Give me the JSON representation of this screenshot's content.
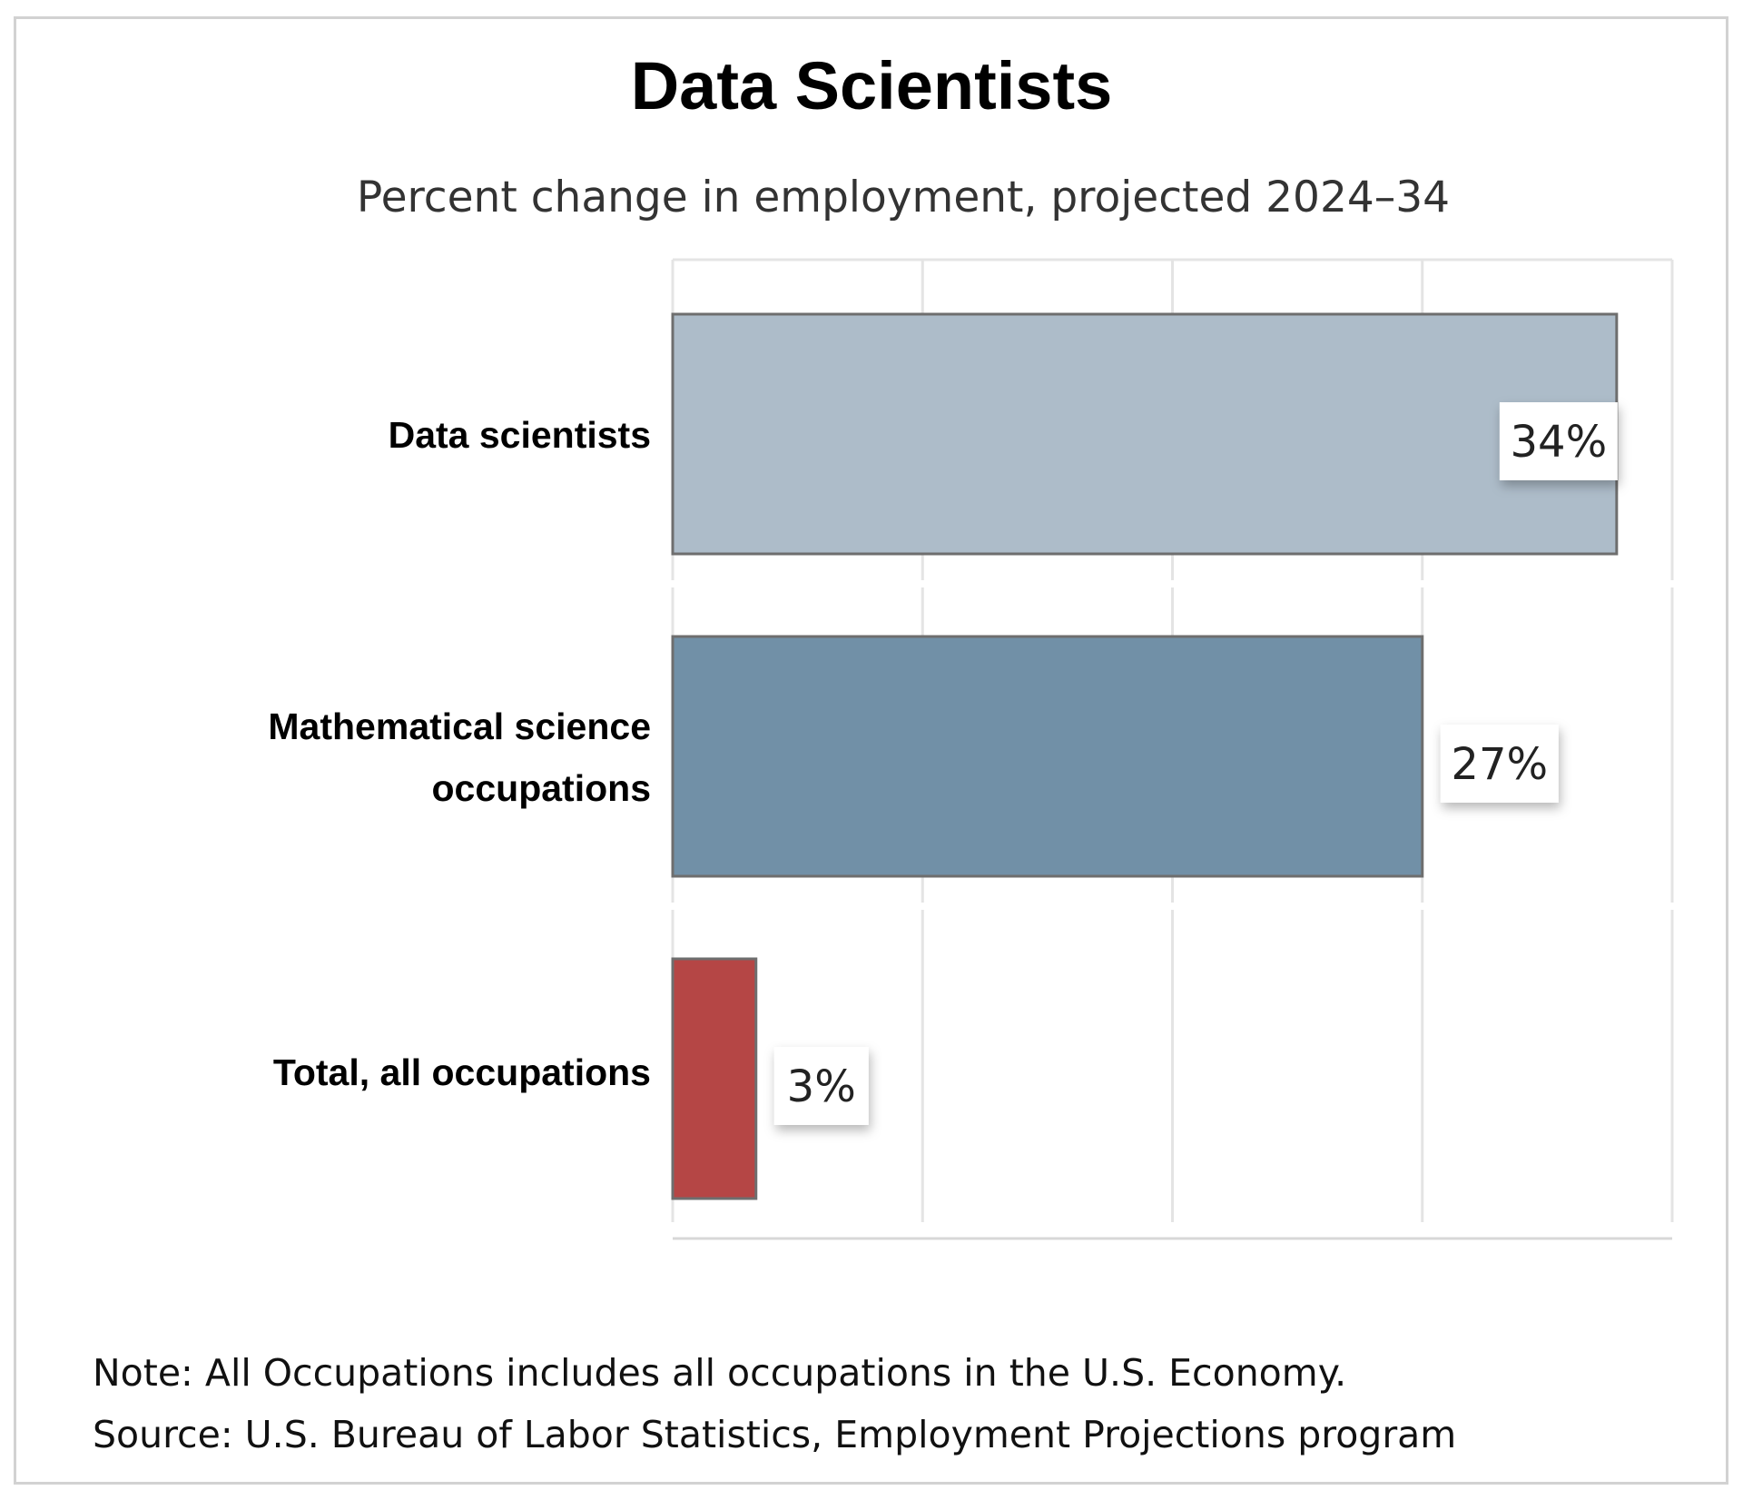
{
  "chart_data": {
    "type": "bar",
    "orientation": "horizontal",
    "title": "Data Scientists",
    "subtitle": "Percent change in employment, projected 2024–34",
    "categories": [
      [
        "Data scientists"
      ],
      [
        "Mathematical science",
        "occupations"
      ],
      [
        "Total, all occupations"
      ]
    ],
    "values": [
      34,
      27,
      3
    ],
    "value_labels": [
      "34%",
      "27%",
      "3%"
    ],
    "colors": [
      "#adbcc9",
      "#7190a7",
      "#b54645"
    ],
    "xlim": [
      0,
      36
    ],
    "gridlines": [
      0,
      9,
      18,
      27,
      36
    ],
    "xlabel": "",
    "ylabel": "",
    "legend": "none"
  },
  "notes": {
    "note": "Note: All Occupations includes all occupations in the U.S. Economy.",
    "source": "Source: U.S. Bureau of Labor Statistics, Employment Projections program"
  }
}
